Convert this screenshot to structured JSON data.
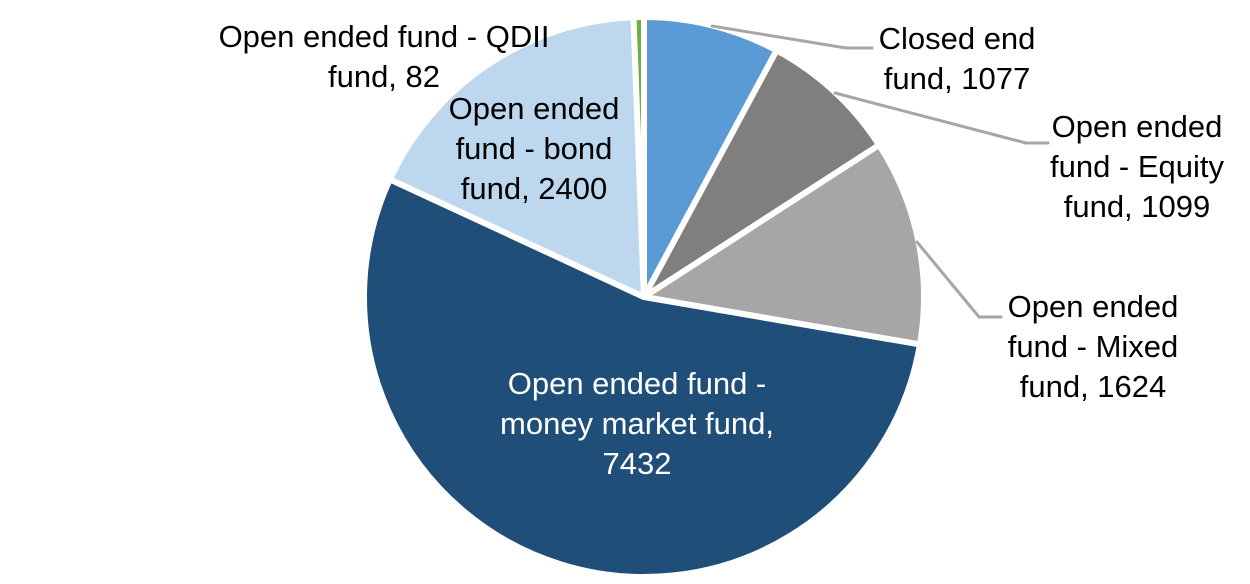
{
  "chart_data": {
    "type": "pie",
    "total": 13714,
    "start_angle_deg": 0,
    "direction": "clockwise",
    "background_color": "#FFFFFF",
    "separator_color": "#FFFFFF",
    "leader_line_color": "#A6A6A6",
    "label_text_color": "#000000",
    "slices": [
      {
        "name": "Closed end fund",
        "value": 1077,
        "color": "#5B9BD5",
        "label_placement": "outside",
        "label_lines": [
          "Closed end",
          "fund, 1077"
        ]
      },
      {
        "name": "Open ended fund - Equity fund",
        "value": 1099,
        "color": "#7F7F7F",
        "label_placement": "outside",
        "label_lines": [
          "Open ended",
          "fund - Equity",
          "fund, 1099"
        ]
      },
      {
        "name": "Open ended fund - Mixed fund",
        "value": 1624,
        "color": "#A6A6A6",
        "label_placement": "outside",
        "label_lines": [
          "Open ended",
          "fund - Mixed",
          "fund, 1624"
        ]
      },
      {
        "name": "Open ended fund - money market fund",
        "value": 7432,
        "color": "#1F4E79",
        "label_placement": "inside",
        "label_color": "#FFFFFF",
        "label_lines": [
          "Open ended fund -",
          "money market fund,",
          "7432"
        ]
      },
      {
        "name": "Open ended fund - bond fund",
        "value": 2400,
        "color": "#BDD7EE",
        "label_placement": "inside",
        "label_color": "#000000",
        "label_lines": [
          "Open ended",
          "fund - bond",
          "fund, 2400"
        ]
      },
      {
        "name": "Open ended fund - QDII fund",
        "value": 82,
        "color": "#70AD47",
        "label_placement": "outside",
        "label_lines": [
          "Open ended fund - QDII",
          "fund, 82"
        ]
      }
    ]
  }
}
